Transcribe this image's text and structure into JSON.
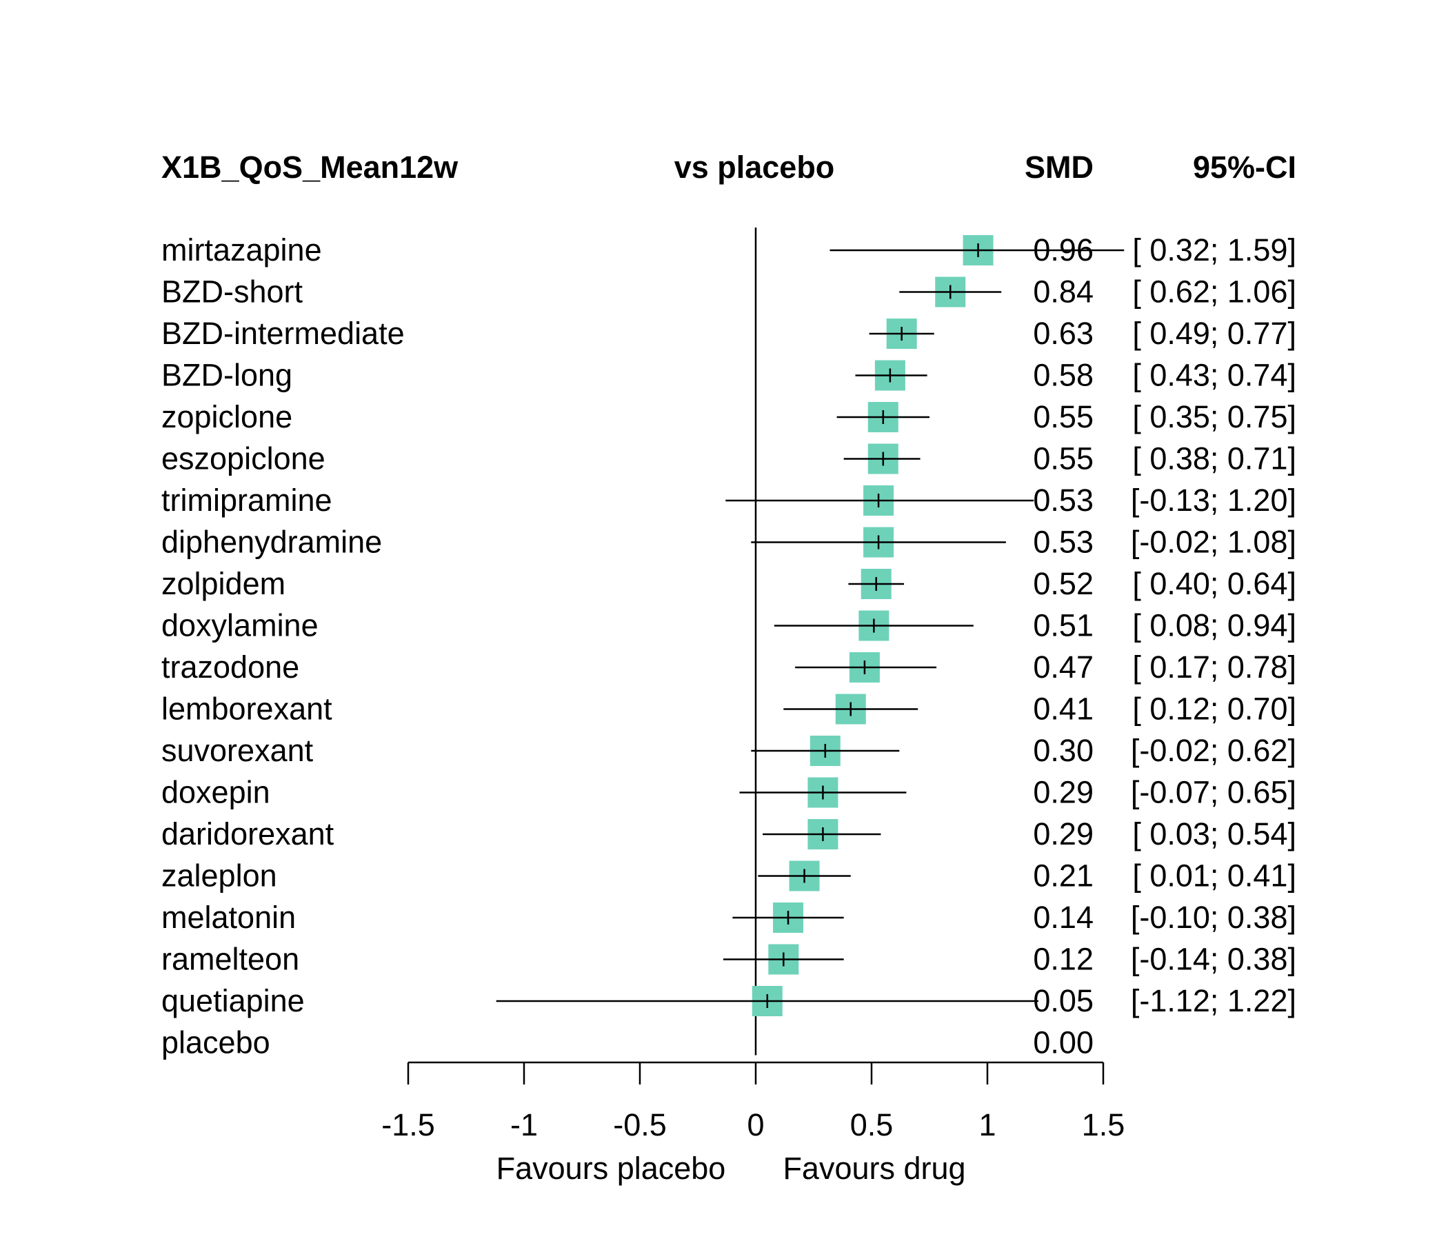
{
  "chart_data": {
    "type": "forest",
    "header": {
      "outcome": "X1B_QoS_Mean12w",
      "comparison": "vs placebo",
      "smd": "SMD",
      "ci": "95%-CI"
    },
    "rows": [
      {
        "label": "mirtazapine",
        "smd": 0.96,
        "lower": 0.32,
        "upper": 1.59,
        "smd_text": "0.96",
        "ci_text": "[ 0.32; 1.59]"
      },
      {
        "label": "BZD-short",
        "smd": 0.84,
        "lower": 0.62,
        "upper": 1.06,
        "smd_text": "0.84",
        "ci_text": "[ 0.62; 1.06]"
      },
      {
        "label": "BZD-intermediate",
        "smd": 0.63,
        "lower": 0.49,
        "upper": 0.77,
        "smd_text": "0.63",
        "ci_text": "[ 0.49; 0.77]"
      },
      {
        "label": "BZD-long",
        "smd": 0.58,
        "lower": 0.43,
        "upper": 0.74,
        "smd_text": "0.58",
        "ci_text": "[ 0.43; 0.74]"
      },
      {
        "label": "zopiclone",
        "smd": 0.55,
        "lower": 0.35,
        "upper": 0.75,
        "smd_text": "0.55",
        "ci_text": "[ 0.35; 0.75]"
      },
      {
        "label": "eszopiclone",
        "smd": 0.55,
        "lower": 0.38,
        "upper": 0.71,
        "smd_text": "0.55",
        "ci_text": "[ 0.38; 0.71]"
      },
      {
        "label": "trimipramine",
        "smd": 0.53,
        "lower": -0.13,
        "upper": 1.2,
        "smd_text": "0.53",
        "ci_text": "[-0.13; 1.20]"
      },
      {
        "label": "diphenydramine",
        "smd": 0.53,
        "lower": -0.02,
        "upper": 1.08,
        "smd_text": "0.53",
        "ci_text": "[-0.02; 1.08]"
      },
      {
        "label": "zolpidem",
        "smd": 0.52,
        "lower": 0.4,
        "upper": 0.64,
        "smd_text": "0.52",
        "ci_text": "[ 0.40; 0.64]"
      },
      {
        "label": "doxylamine",
        "smd": 0.51,
        "lower": 0.08,
        "upper": 0.94,
        "smd_text": "0.51",
        "ci_text": "[ 0.08; 0.94]"
      },
      {
        "label": "trazodone",
        "smd": 0.47,
        "lower": 0.17,
        "upper": 0.78,
        "smd_text": "0.47",
        "ci_text": "[ 0.17; 0.78]"
      },
      {
        "label": "lemborexant",
        "smd": 0.41,
        "lower": 0.12,
        "upper": 0.7,
        "smd_text": "0.41",
        "ci_text": "[ 0.12; 0.70]"
      },
      {
        "label": "suvorexant",
        "smd": 0.3,
        "lower": -0.02,
        "upper": 0.62,
        "smd_text": "0.30",
        "ci_text": "[-0.02; 0.62]"
      },
      {
        "label": "doxepin",
        "smd": 0.29,
        "lower": -0.07,
        "upper": 0.65,
        "smd_text": "0.29",
        "ci_text": "[-0.07; 0.65]"
      },
      {
        "label": "daridorexant",
        "smd": 0.29,
        "lower": 0.03,
        "upper": 0.54,
        "smd_text": "0.29",
        "ci_text": "[ 0.03; 0.54]"
      },
      {
        "label": "zaleplon",
        "smd": 0.21,
        "lower": 0.01,
        "upper": 0.41,
        "smd_text": "0.21",
        "ci_text": "[ 0.01; 0.41]"
      },
      {
        "label": "melatonin",
        "smd": 0.14,
        "lower": -0.1,
        "upper": 0.38,
        "smd_text": "0.14",
        "ci_text": "[-0.10; 0.38]"
      },
      {
        "label": "ramelteon",
        "smd": 0.12,
        "lower": -0.14,
        "upper": 0.38,
        "smd_text": "0.12",
        "ci_text": "[-0.14; 0.38]"
      },
      {
        "label": "quetiapine",
        "smd": 0.05,
        "lower": -1.12,
        "upper": 1.22,
        "smd_text": "0.05",
        "ci_text": "[-1.12; 1.22]"
      },
      {
        "label": "placebo",
        "smd": 0.0,
        "lower": null,
        "upper": null,
        "smd_text": "0.00",
        "ci_text": ""
      }
    ],
    "xlim": [
      -1.5,
      1.5
    ],
    "xticks": [
      -1.5,
      -1,
      -0.5,
      0,
      0.5,
      1,
      1.5
    ],
    "xtick_labels": [
      "-1.5",
      "-1",
      "-0.5",
      "0",
      "0.5",
      "1",
      "1.5"
    ],
    "xlabel_left": "Favours placebo",
    "xlabel_right": "Favours drug",
    "colors": {
      "box": "#6ed2b9",
      "line": "#000000"
    }
  }
}
